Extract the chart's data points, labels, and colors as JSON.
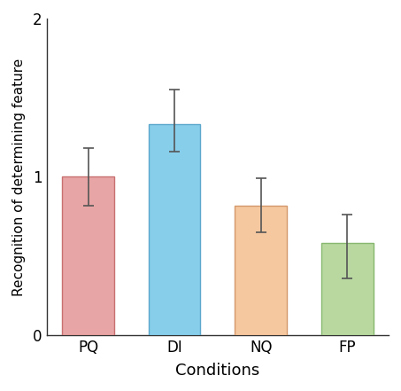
{
  "categories": [
    "PQ",
    "DI",
    "NQ",
    "FP"
  ],
  "values": [
    1.0,
    1.33,
    0.82,
    0.58
  ],
  "errors_upper": [
    0.18,
    0.22,
    0.17,
    0.18
  ],
  "errors_lower": [
    0.18,
    0.17,
    0.17,
    0.22
  ],
  "bar_colors": [
    "#e8a5a5",
    "#87ceeb",
    "#f5c8a0",
    "#b8d8a0"
  ],
  "bar_edgecolors": [
    "#c87070",
    "#5ca8cc",
    "#d4986a",
    "#88b870"
  ],
  "xlabel": "Conditions",
  "ylabel": "Recognition of determining feature",
  "ylim": [
    0,
    2
  ],
  "yticks": [
    0,
    1,
    2
  ],
  "figsize": [
    4.53,
    4.41
  ],
  "dpi": 100,
  "background_color": "#ffffff"
}
